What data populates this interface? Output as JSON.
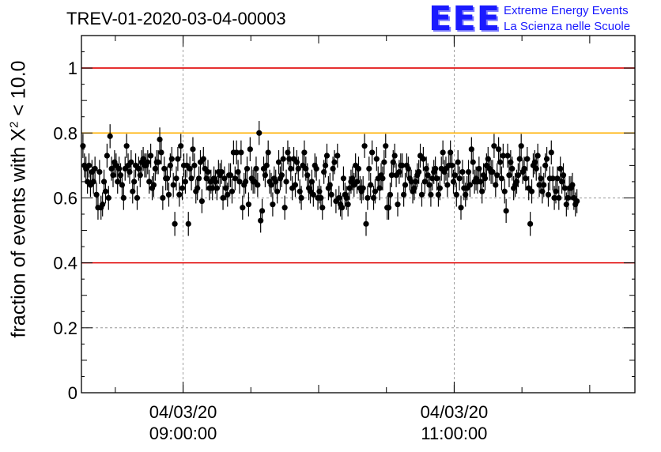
{
  "title": "TREV-01-2020-03-04-00003",
  "logo": {
    "mark": "EEE",
    "line1": "Extreme Energy Events",
    "line2": "La Scienza nelle Scuole"
  },
  "colors": {
    "limit_line": "#e00000",
    "reference_line": "#ffb000",
    "markers": "#000000",
    "logo": "#1a1aff"
  },
  "chart_data": {
    "type": "scatter",
    "title": "TREV-01-2020-03-04-00003",
    "ylabel": {
      "prefix": "fraction of events with ",
      "symbol": "X",
      "sup": "2",
      "suffix": " < 10.0"
    },
    "ylim": [
      0,
      1.1
    ],
    "x_range": [
      "2020-03-04 08:15:00",
      "2020-03-04 12:20:00"
    ],
    "y_ticks": [
      "0",
      "0.2",
      "0.4",
      "0.6",
      "0.8",
      "1"
    ],
    "x_ticks": [
      {
        "at": "2020-03-04 09:00:00",
        "date": "04/03/20",
        "time": "09:00:00"
      },
      {
        "at": "2020-03-04 11:00:00",
        "date": "04/03/20",
        "time": "11:00:00"
      }
    ],
    "grid": true,
    "reference_lines": [
      {
        "y": 1.0,
        "color": "red"
      },
      {
        "y": 0.8,
        "color": "orange"
      },
      {
        "y": 0.4,
        "color": "red"
      }
    ],
    "series": [
      {
        "start_time": "2020-03-04 08:15:40",
        "interval_seconds": 40,
        "y": [
          0.76,
          0.7,
          0.69,
          0.65,
          0.7,
          0.64,
          0.68,
          0.65,
          0.69,
          0.61,
          0.57,
          0.68,
          0.57,
          0.58,
          0.65,
          0.62,
          0.73,
          0.6,
          0.79,
          0.69,
          0.67,
          0.71,
          0.7,
          0.65,
          0.69,
          0.67,
          0.64,
          0.6,
          0.69,
          0.76,
          0.7,
          0.68,
          0.71,
          0.62,
          0.65,
          0.7,
          0.6,
          0.69,
          0.67,
          0.71,
          0.72,
          0.7,
          0.7,
          0.71,
          0.65,
          0.73,
          0.63,
          0.64,
          0.69,
          0.71,
          0.71,
          0.78,
          0.74,
          0.6,
          0.69,
          0.66,
          0.66,
          0.61,
          0.7,
          0.72,
          0.64,
          0.52,
          0.66,
          0.72,
          0.61,
          0.76,
          0.63,
          0.7,
          0.65,
          0.7,
          0.52,
          0.69,
          0.66,
          0.75,
          0.7,
          0.62,
          0.63,
          0.66,
          0.71,
          0.59,
          0.72,
          0.69,
          0.66,
          0.68,
          0.63,
          0.65,
          0.63,
          0.66,
          0.65,
          0.63,
          0.68,
          0.67,
          0.68,
          0.6,
          0.66,
          0.63,
          0.61,
          0.67,
          0.67,
          0.62,
          0.74,
          0.66,
          0.74,
          0.68,
          0.65,
          0.74,
          0.57,
          0.64,
          0.65,
          0.69,
          0.58,
          0.75,
          0.66,
          0.65,
          0.65,
          0.69,
          0.64,
          0.8,
          0.53,
          0.56,
          0.69,
          0.67,
          0.7,
          0.74,
          0.65,
          0.64,
          0.58,
          0.66,
          0.65,
          0.62,
          0.71,
          0.66,
          0.67,
          0.72,
          0.57,
          0.65,
          0.74,
          0.72,
          0.69,
          0.63,
          0.72,
          0.64,
          0.71,
          0.69,
          0.62,
          0.6,
          0.7,
          0.74,
          0.69,
          0.67,
          0.63,
          0.62,
          0.65,
          0.61,
          0.7,
          0.69,
          0.6,
          0.62,
          0.6,
          0.57,
          0.68,
          0.7,
          0.73,
          0.63,
          0.64,
          0.61,
          0.69,
          0.71,
          0.59,
          0.73,
          0.6,
          0.58,
          0.57,
          0.66,
          0.61,
          0.6,
          0.58,
          0.63,
          0.65,
          0.66,
          0.64,
          0.7,
          0.65,
          0.69,
          0.63,
          0.62,
          0.63,
          0.76,
          0.52,
          0.6,
          0.69,
          0.64,
          0.74,
          0.6,
          0.62,
          0.72,
          0.66,
          0.63,
          0.67,
          0.66,
          0.71,
          0.76,
          0.57,
          0.57,
          0.61,
          0.67,
          0.71,
          0.73,
          0.67,
          0.58,
          0.68,
          0.7,
          0.7,
          0.61,
          0.64,
          0.7,
          0.69,
          0.66,
          0.65,
          0.62,
          0.63,
          0.65,
          0.67,
          0.68,
          0.73,
          0.61,
          0.72,
          0.65,
          0.69,
          0.67,
          0.64,
          0.61,
          0.66,
          0.68,
          0.69,
          0.66,
          0.61,
          0.63,
          0.69,
          0.74,
          0.68,
          0.69,
          0.64,
          0.7,
          0.74,
          0.7,
          0.65,
          0.67,
          0.61,
          0.71,
          0.66,
          0.57,
          0.68,
          0.63,
          0.61,
          0.63,
          0.68,
          0.64,
          0.75,
          0.71,
          0.65,
          0.66,
          0.65,
          0.69,
          0.65,
          0.62,
          0.67,
          0.66,
          0.7,
          0.72,
          0.69,
          0.68,
          0.68,
          0.76,
          0.64,
          0.67,
          0.75,
          0.71,
          0.66,
          0.73,
          0.62,
          0.56,
          0.73,
          0.67,
          0.71,
          0.69,
          0.63,
          0.64,
          0.65,
          0.67,
          0.72,
          0.76,
          0.68,
          0.69,
          0.66,
          0.72,
          0.63,
          0.52,
          0.62,
          0.7,
          0.71,
          0.69,
          0.73,
          0.64,
          0.66,
          0.62,
          0.64,
          0.7,
          0.72,
          0.61,
          0.66,
          0.74,
          0.66,
          0.6,
          0.62,
          0.66,
          0.6,
          0.69,
          0.65,
          0.67,
          0.63,
          0.58,
          0.6,
          0.63,
          0.63,
          0.64,
          0.6,
          0.58,
          0.59
        ],
        "y_error": 0.037
      }
    ]
  }
}
